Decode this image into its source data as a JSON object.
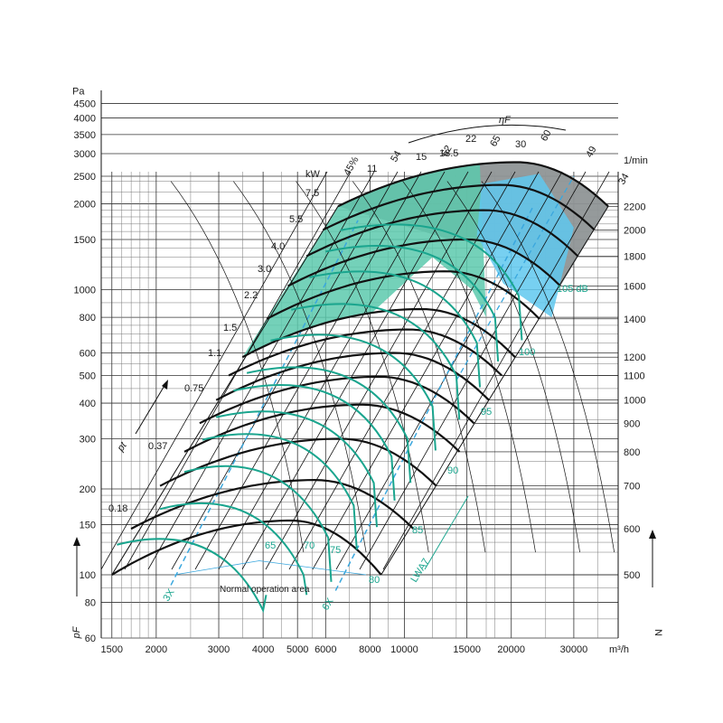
{
  "colors": {
    "grid": "#333333",
    "green": "#1aa58e",
    "greenFill": "#5cc9ad",
    "blueFill": "#5fc8ee",
    "grayFill": "#8f9596",
    "dashBlue": "#3aa7de",
    "black": "#111111"
  },
  "chart_data": {
    "type": "line",
    "title": "",
    "xlabel": "m³/h",
    "ylabel_top": "Pa",
    "ylabel_bottom": "pF",
    "right_axis_label": "N",
    "right_axis_unit": "1/min",
    "x_scale": "log",
    "y_scale": "log",
    "xlim": [
      1400,
      40000
    ],
    "ylim": [
      60,
      5000
    ],
    "x_ticks": [
      {
        "v": 1500,
        "t": "1500"
      },
      {
        "v": 2000,
        "t": "2000"
      },
      {
        "v": 3000,
        "t": "3000"
      },
      {
        "v": 4000,
        "t": "4000"
      },
      {
        "v": 5000,
        "t": "5000"
      },
      {
        "v": 6000,
        "t": "6000"
      },
      {
        "v": 8000,
        "t": "8000"
      },
      {
        "v": 10000,
        "t": "10000"
      },
      {
        "v": 15000,
        "t": "15000"
      },
      {
        "v": 20000,
        "t": "20000"
      },
      {
        "v": 30000,
        "t": "30000"
      }
    ],
    "y_ticks": [
      {
        "v": 60,
        "t": "60"
      },
      {
        "v": 80,
        "t": "80"
      },
      {
        "v": 100,
        "t": "100"
      },
      {
        "v": 150,
        "t": "150"
      },
      {
        "v": 200,
        "t": "200"
      },
      {
        "v": 300,
        "t": "300"
      },
      {
        "v": 400,
        "t": "400"
      },
      {
        "v": 500,
        "t": "500"
      },
      {
        "v": 600,
        "t": "600"
      },
      {
        "v": 800,
        "t": "800"
      },
      {
        "v": 1000,
        "t": "1000"
      },
      {
        "v": 1500,
        "t": "1500"
      },
      {
        "v": 2000,
        "t": "2000"
      },
      {
        "v": 2500,
        "t": "2500"
      },
      {
        "v": 3000,
        "t": "3000"
      },
      {
        "v": 3500,
        "t": "3500"
      },
      {
        "v": 4000,
        "t": "4000"
      },
      {
        "v": 4500,
        "t": "4500"
      }
    ],
    "speed_curves": [
      {
        "rpm": "500",
        "start": [
          1500,
          100
        ],
        "peak": [
          4800,
          155
        ],
        "end": [
          8600,
          100
        ]
      },
      {
        "rpm": "600",
        "start": [
          1700,
          145
        ],
        "peak": [
          5600,
          215
        ],
        "end": [
          10600,
          145
        ]
      },
      {
        "rpm": "700",
        "start": [
          2050,
          205
        ],
        "peak": [
          6600,
          300
        ],
        "end": [
          12300,
          205
        ]
      },
      {
        "rpm": "800",
        "start": [
          2400,
          270
        ],
        "peak": [
          7600,
          395
        ],
        "end": [
          14300,
          270
        ]
      },
      {
        "rpm": "900",
        "start": [
          2650,
          340
        ],
        "peak": [
          8500,
          495
        ],
        "end": [
          15700,
          340
        ]
      },
      {
        "rpm": "1000",
        "start": [
          2950,
          410
        ],
        "peak": [
          9400,
          600
        ],
        "end": [
          17300,
          410
        ]
      },
      {
        "rpm": "1100",
        "start": [
          3200,
          500
        ],
        "peak": [
          10300,
          725
        ],
        "end": [
          18800,
          500
        ]
      },
      {
        "rpm": "1200",
        "start": [
          3500,
          580
        ],
        "peak": [
          11200,
          855
        ],
        "end": [
          20500,
          580
        ]
      },
      {
        "rpm": "1400",
        "start": [
          4100,
          790
        ],
        "peak": [
          13100,
          1160
        ],
        "end": [
          24000,
          790
        ]
      },
      {
        "rpm": "1600",
        "start": [
          4700,
          1030
        ],
        "peak": [
          15000,
          1500
        ],
        "end": [
          27500,
          1030
        ]
      },
      {
        "rpm": "1800",
        "start": [
          5300,
          1310
        ],
        "peak": [
          16900,
          1900
        ],
        "end": [
          30800,
          1310
        ]
      },
      {
        "rpm": "2000",
        "start": [
          5900,
          1620
        ],
        "peak": [
          18800,
          2330
        ],
        "end": [
          34300,
          1620
        ]
      },
      {
        "rpm": "2200",
        "start": [
          6500,
          1960
        ],
        "peak": [
          20700,
          2800
        ],
        "end": [
          37500,
          1960
        ]
      }
    ],
    "power_labels": [
      "0.18",
      "0.37",
      "0.75",
      "1.1",
      "1.5",
      "2.2",
      "3.0",
      "4.0",
      "5.5",
      "7.5",
      "11",
      "15",
      "18.5",
      "22",
      "30"
    ],
    "efficiency_labels": [
      "45%",
      "54",
      "62",
      "65",
      "60",
      "49",
      "34"
    ],
    "noise_labels": [
      "65",
      "70",
      "75",
      "80",
      "85",
      "90",
      "95",
      "100",
      "105 dB"
    ],
    "annotations": {
      "kw": "kW",
      "pt": "pt",
      "eta": "ηF",
      "lwa": "LWA7",
      "op_area": "Normal operation area",
      "three_x": "3X",
      "six_x": "6X"
    }
  }
}
